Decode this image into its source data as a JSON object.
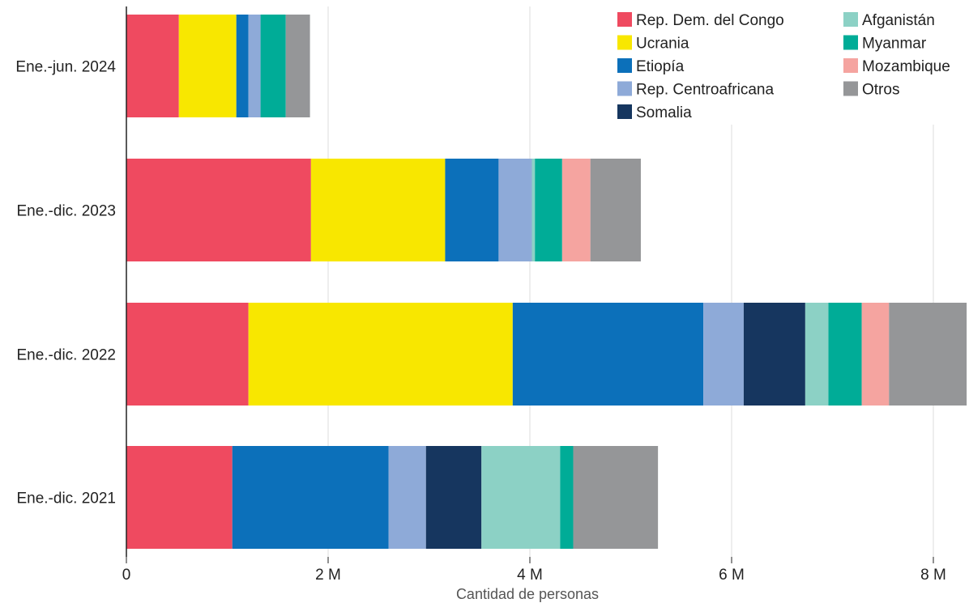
{
  "chart_data": {
    "type": "bar",
    "orientation": "horizontal",
    "stacked": true,
    "categories": [
      "Ene.-jun. 2024",
      "Ene.-dic. 2023",
      "Ene.-dic. 2022",
      "Ene.-dic. 2021"
    ],
    "series": [
      {
        "name": "Rep. Dem. del Congo",
        "color": "#ef4a60",
        "values": [
          0.52,
          1.83,
          1.21,
          1.05
        ]
      },
      {
        "name": "Ucrania",
        "color": "#f8e700",
        "values": [
          0.57,
          1.33,
          2.62,
          0
        ]
      },
      {
        "name": "Etiopía",
        "color": "#0c70ba",
        "values": [
          0.12,
          0.53,
          1.89,
          1.55
        ]
      },
      {
        "name": "Rep. Centroafricana",
        "color": "#8eaad8",
        "values": [
          0.12,
          0.33,
          0.4,
          0.37
        ]
      },
      {
        "name": "Somalia",
        "color": "#16365f",
        "values": [
          0,
          0,
          0.61,
          0.55
        ]
      },
      {
        "name": "Afganistán",
        "color": "#8cd1c5",
        "values": [
          0,
          0.03,
          0.23,
          0.78
        ]
      },
      {
        "name": "Myanmar",
        "color": "#00ac97",
        "values": [
          0.25,
          0.27,
          0.33,
          0.13
        ]
      },
      {
        "name": "Mozambique",
        "color": "#f5a4a0",
        "values": [
          0,
          0.28,
          0.27,
          0
        ]
      },
      {
        "name": "Otros",
        "color": "#959698",
        "values": [
          0.24,
          0.5,
          0.77,
          0.84
        ]
      }
    ],
    "x_ticks": [
      "0",
      "2 M",
      "4 M",
      "6 M",
      "8 M"
    ],
    "x_tick_values": [
      0,
      2,
      4,
      6,
      8
    ],
    "xlim": [
      0,
      8.3
    ],
    "xlabel": "Cantidad de personas",
    "ylabel": "",
    "grid": "vertical",
    "legend_position": "top-right",
    "legend_order": [
      "Rep. Dem. del Congo",
      "Ucrania",
      "Etiopía",
      "Rep. Centroafricana",
      "Somalia",
      "Afganistán",
      "Myanmar",
      "Mozambique",
      "Otros"
    ],
    "unit": "millones de personas"
  }
}
